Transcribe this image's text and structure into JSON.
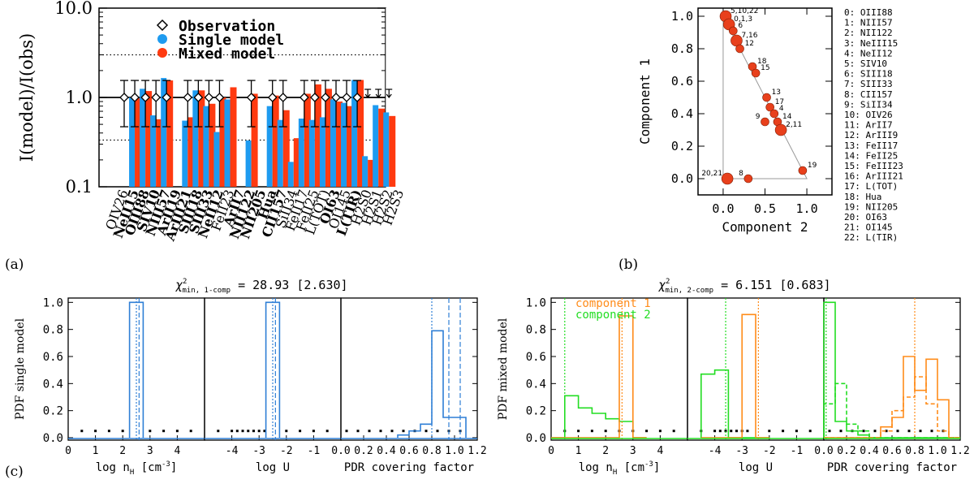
{
  "colors": {
    "single": "#1E9BF0",
    "mixed": "#FF3A10",
    "comp1": "#FF8C1A",
    "comp2": "#22DD22",
    "pdf_single": "#2F7FD6",
    "point": "#E8401C"
  },
  "panel_labels": {
    "a": "(a)",
    "b": "(b)",
    "c": "(c)"
  },
  "chart_data": [
    {
      "id": "a",
      "type": "bar",
      "ylabel": "I(model)/I(obs)",
      "yscale": "log",
      "ylim": [
        0.1,
        10
      ],
      "yticks": [
        "10.0",
        "1.0",
        "0.1"
      ],
      "legend": [
        "Observation",
        "Single model",
        "Mixed model"
      ],
      "categories": [
        "OIV26",
        "NeII15",
        "OIII88",
        "SIV10",
        "NIII57",
        "ArII19",
        "ArIII21",
        "SIII18",
        "SIII33",
        "NeII12",
        "FeII23",
        "ArII7",
        "NII122",
        "NII205",
        "Hua",
        "CII157",
        "SiII34",
        "FeII17",
        "FeII25",
        "L(TOT)",
        "OI63",
        "OI145",
        "L(TIR)",
        "H2S0",
        "H2S1",
        "H2S2",
        "H2S3"
      ],
      "bold": [
        false,
        true,
        true,
        true,
        true,
        true,
        true,
        true,
        true,
        true,
        false,
        true,
        true,
        true,
        true,
        true,
        false,
        false,
        false,
        false,
        true,
        false,
        true,
        false,
        false,
        false,
        false
      ],
      "single": [
        null,
        1.0,
        1.25,
        0.63,
        1.65,
        null,
        0.55,
        1.2,
        0.8,
        0.41,
        0.95,
        null,
        0.33,
        null,
        0.8,
        0.56,
        0.19,
        0.58,
        0.56,
        0.6,
        0.95,
        0.87,
        1.57,
        0.22,
        0.82,
        0.68,
        null
      ],
      "mixed": [
        null,
        0.98,
        1.18,
        0.57,
        1.55,
        null,
        0.6,
        1.2,
        0.85,
        1.0,
        1.3,
        null,
        1.1,
        null,
        1.05,
        0.72,
        0.35,
        1.1,
        1.4,
        1.25,
        0.9,
        0.8,
        1.57,
        0.2,
        0.75,
        0.62,
        null
      ],
      "observed": [
        true,
        true,
        true,
        true,
        true,
        false,
        true,
        true,
        true,
        true,
        false,
        false,
        true,
        false,
        true,
        true,
        false,
        true,
        true,
        true,
        true,
        true,
        true,
        false,
        false,
        false,
        false
      ],
      "upper_limits": [
        "H2S0",
        "H2S1",
        "H2S2"
      ],
      "reference_lines": [
        1.0,
        3.0,
        0.333
      ]
    },
    {
      "id": "b",
      "type": "scatter",
      "xlabel": "Component 2",
      "ylabel": "Component 1",
      "xlim": [
        -0.3,
        1.3
      ],
      "ylim": [
        -0.1,
        1.05
      ],
      "xticks": [
        "0.0",
        "0.5",
        "1.0"
      ],
      "yticks": [
        "0.0",
        "0.2",
        "0.4",
        "0.6",
        "0.8",
        "1.0"
      ],
      "points": [
        {
          "label": "5,10,22",
          "x": 0.03,
          "y": 1.0
        },
        {
          "label": "0,1,3",
          "x": 0.07,
          "y": 0.95
        },
        {
          "label": "6",
          "x": 0.12,
          "y": 0.91
        },
        {
          "label": "7,16",
          "x": 0.16,
          "y": 0.85
        },
        {
          "label": "12",
          "x": 0.2,
          "y": 0.8
        },
        {
          "label": "18",
          "x": 0.35,
          "y": 0.69
        },
        {
          "label": "15",
          "x": 0.39,
          "y": 0.65
        },
        {
          "label": "13",
          "x": 0.52,
          "y": 0.5
        },
        {
          "label": "17",
          "x": 0.56,
          "y": 0.44
        },
        {
          "label": "4",
          "x": 0.61,
          "y": 0.4
        },
        {
          "label": "9",
          "x": 0.5,
          "y": 0.35
        },
        {
          "label": "14",
          "x": 0.65,
          "y": 0.35
        },
        {
          "label": "2,11",
          "x": 0.69,
          "y": 0.3
        },
        {
          "label": "19",
          "x": 0.95,
          "y": 0.05
        },
        {
          "label": "20,21",
          "x": 0.05,
          "y": 0.0
        },
        {
          "label": "8",
          "x": 0.3,
          "y": 0.0
        }
      ],
      "hull": [
        [
          0.0,
          1.0
        ],
        [
          1.0,
          0.0
        ],
        [
          0.0,
          0.0
        ]
      ],
      "key": [
        "0: OIII88",
        "1: NIII57",
        "2: NII122",
        "3: NeIII15",
        "4: NeII12",
        "5: SIV10",
        "6: SIII18",
        "7: SIII33",
        "8: CII157",
        "9: SiII34",
        "10: OIV26",
        "11:   ArII7",
        "12: ArIII9",
        "13: FeII17",
        "14: FeII25",
        "15: FeIII23",
        "16: ArIII21",
        "17: L(TOT)",
        "18:    Hua",
        "19: NII205",
        "20: OI63",
        "21: OI145",
        "22: L(TIR)"
      ]
    },
    {
      "id": "c-single",
      "type": "step-histogram",
      "title_sym": "χ",
      "title_sup": "2",
      "title_sub": "min, 1-comp",
      "title_val": " = 28.93 [2.630]",
      "ylabel": "PDF single model",
      "ylim": [
        0,
        1.05
      ],
      "yticks": [
        "0.0",
        "0.2",
        "0.4",
        "0.6",
        "0.8",
        "1.0"
      ],
      "subplots": [
        {
          "xlabel": "log n",
          "xsub": "H",
          "xunit": " [cm",
          "xsup": "-3",
          "xclose": "]",
          "xlim": [
            0,
            5
          ],
          "xticks": [
            "0",
            "1",
            "2",
            "3",
            "4"
          ],
          "edges": [
            2.25,
            2.75
          ],
          "solid": [
            1.0
          ],
          "vlines_dotted": [
            2.5
          ],
          "vlines_dashed": [
            2.6
          ],
          "dots": [
            0.5,
            1.0,
            1.5,
            2.0,
            3.0,
            3.5,
            4.0,
            4.5
          ]
        },
        {
          "xlabel": "log U",
          "xlim": [
            -5,
            0
          ],
          "xticks": [
            "-4",
            "-3",
            "-2",
            "-1"
          ],
          "edges": [
            -2.75,
            -2.25
          ],
          "solid": [
            1.0
          ],
          "vlines_dotted": [
            -2.5
          ],
          "vlines_dashed": [
            -2.4
          ],
          "dots": [
            -4.5,
            -4.0,
            -3.8,
            -3.6,
            -3.4,
            -3.2,
            -3.0,
            -2.8,
            -2.0,
            -1.5,
            -1.0,
            -0.5
          ]
        },
        {
          "xlabel": "PDR covering factor",
          "xlim": [
            0,
            1.2
          ],
          "xticks": [
            "0.0",
            "0.2",
            "0.4",
            "0.6",
            "0.8",
            "1.0",
            "1.2"
          ],
          "edges": [
            0.5,
            0.6,
            0.7,
            0.8,
            0.9,
            1.0,
            1.1
          ],
          "solid": [
            0.02,
            0.05,
            0.1,
            0.79,
            0.15,
            0.15
          ],
          "vlines_dotted": [
            0.8
          ],
          "vlines_dashed": [
            0.95,
            1.05
          ],
          "dots": [
            0.05,
            0.15,
            0.25,
            0.35,
            0.45,
            0.55,
            0.65,
            0.75,
            0.85,
            0.95,
            1.05
          ]
        }
      ]
    },
    {
      "id": "c-mixed",
      "type": "step-histogram",
      "title_sym": "χ",
      "title_sup": "2",
      "title_sub": "min, 2-comp",
      "title_val": " = 6.151 [0.683]",
      "ylabel": "PDF mixed model",
      "ylim": [
        0,
        1.05
      ],
      "yticks": [
        "0.0",
        "0.2",
        "0.4",
        "0.6",
        "0.8",
        "1.0"
      ],
      "legend": [
        "component 1",
        "component 2"
      ],
      "subplots": [
        {
          "xlabel": "log n",
          "xsub": "H",
          "xunit": " [cm",
          "xsup": "-3",
          "xclose": "]",
          "xlim": [
            0,
            5
          ],
          "xticks": [
            "0",
            "1",
            "2",
            "3",
            "4"
          ],
          "edges": [
            0.0,
            0.5,
            1.0,
            1.5,
            2.0,
            2.5,
            3.0,
            3.5
          ],
          "comp2": [
            0.0,
            0.31,
            0.22,
            0.18,
            0.14,
            0.12,
            0.0
          ],
          "comp1": [
            0.0,
            0.0,
            0.0,
            0.0,
            0.0,
            0.9,
            0.0
          ],
          "vline_comp2": [
            0.5
          ],
          "vline_comp1": [
            2.6
          ],
          "dots": [
            0.5,
            1.0,
            1.5,
            2.0,
            2.5,
            3.0,
            3.5,
            4.0,
            4.5
          ]
        },
        {
          "xlabel": "log U",
          "xlim": [
            -5,
            0
          ],
          "xticks": [
            "-4",
            "-3",
            "-2",
            "-1"
          ],
          "edges": [
            -4.5,
            -4.0,
            -3.5,
            -3.0,
            -2.5,
            -2.0
          ],
          "comp2": [
            0.47,
            0.5,
            0.0,
            0.0,
            0.0
          ],
          "comp1": [
            0.0,
            0.0,
            0.0,
            0.91,
            0.0
          ],
          "vline_comp2": [
            -3.6
          ],
          "vline_comp1": [
            -2.4
          ],
          "dots": [
            -4.5,
            -4.0,
            -3.8,
            -3.6,
            -3.4,
            -3.2,
            -3.0,
            -2.8,
            -2.0,
            -1.5,
            -1.0,
            -0.5
          ]
        },
        {
          "xlabel": "PDR covering factor",
          "xlim": [
            0,
            1.2
          ],
          "xticks": [
            "0.0",
            "0.2",
            "0.4",
            "0.6",
            "0.8",
            "1.0",
            "1.2"
          ],
          "edges": [
            0.0,
            0.1,
            0.2,
            0.3,
            0.4,
            0.5,
            0.6,
            0.7,
            0.8,
            0.9,
            1.0,
            1.1,
            1.2
          ],
          "comp2": [
            1.0,
            0.12,
            0.05,
            0.02,
            0.0,
            0.0,
            0.0,
            0.0,
            0.0,
            0.0,
            0.0,
            0.0
          ],
          "comp2_dashed": [
            0.25,
            0.4,
            0.1,
            0.05,
            0.0,
            0.0,
            0.0,
            0.0,
            0.0,
            0.0,
            0.0,
            0.0
          ],
          "comp1": [
            0.0,
            0.0,
            0.0,
            0.0,
            0.0,
            0.08,
            0.15,
            0.6,
            0.35,
            0.58,
            0.28,
            0.0
          ],
          "comp1_dashed": [
            0.0,
            0.0,
            0.0,
            0.0,
            0.0,
            0.05,
            0.2,
            0.3,
            0.45,
            0.25,
            0.05,
            0.0
          ],
          "vline_comp2": [
            0.02
          ],
          "vline_comp1": [
            0.8
          ],
          "dots": [
            0.05,
            0.15,
            0.25,
            0.35,
            0.45,
            0.55,
            0.65,
            0.75,
            0.85,
            0.95,
            1.05
          ]
        }
      ]
    }
  ]
}
